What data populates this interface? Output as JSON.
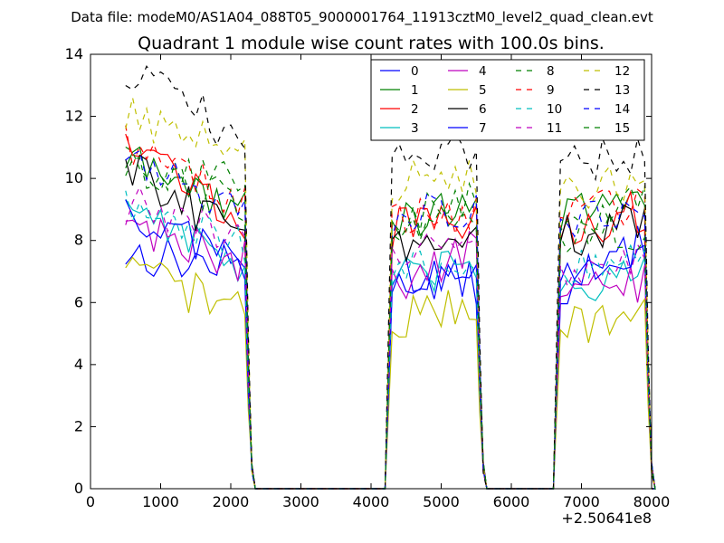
{
  "chart_data": {
    "type": "line",
    "suptitle": "Data file: modeM0/AS1A04_088T05_9000001764_11913cztM0_level2_quad_clean.evt",
    "title": "Quadrant 1 module wise count rates with 100.0s bins.",
    "xlabel": "",
    "ylabel": "",
    "x_offset_label": "+2.50641e8",
    "xlim": [
      0,
      8000
    ],
    "ylim": [
      0,
      14
    ],
    "xticks": [
      0,
      1000,
      2000,
      3000,
      4000,
      5000,
      6000,
      7000,
      8000
    ],
    "yticks": [
      0,
      2,
      4,
      6,
      8,
      10,
      12,
      14
    ],
    "grid": false,
    "legend_position": "top-right",
    "legend_columns": 4,
    "segments": [
      {
        "x_start": 500,
        "x_end": 2200
      },
      {
        "x_start": 4300,
        "x_end": 5500
      },
      {
        "x_start": 6700,
        "x_end": 7900
      }
    ],
    "series": [
      {
        "name": "0",
        "color": "#0000ff",
        "dashed": false,
        "levels": [
          7.6,
          7.1,
          7.0,
          6.6,
          6.3,
          8.0
        ]
      },
      {
        "name": "1",
        "color": "#008000",
        "dashed": false,
        "levels": [
          10.6,
          9.0,
          8.5,
          9.4,
          8.6,
          9.7
        ]
      },
      {
        "name": "2",
        "color": "#ff0000",
        "dashed": false,
        "levels": [
          11.6,
          8.4,
          8.4,
          8.6,
          8.3,
          9.0
        ]
      },
      {
        "name": "3",
        "color": "#00bfbf",
        "dashed": false,
        "levels": [
          9.4,
          7.0,
          6.7,
          7.1,
          6.6,
          6.8
        ]
      },
      {
        "name": "4",
        "color": "#bf00bf",
        "dashed": false,
        "levels": [
          8.6,
          7.3,
          6.6,
          7.8,
          6.4,
          6.6
        ]
      },
      {
        "name": "5",
        "color": "#bfbf00",
        "dashed": false,
        "levels": [
          7.0,
          5.8,
          5.4,
          6.0,
          5.3,
          5.6
        ]
      },
      {
        "name": "6",
        "color": "#000000",
        "dashed": false,
        "levels": [
          10.4,
          8.0,
          7.8,
          8.4,
          8.1,
          8.6
        ]
      },
      {
        "name": "7",
        "color": "#0000ff",
        "dashed": false,
        "levels": [
          9.0,
          7.3,
          6.9,
          6.6,
          6.8,
          7.5
        ]
      },
      {
        "name": "8",
        "color": "#008000",
        "dashed": true,
        "levels": [
          10.6,
          9.8,
          8.6,
          9.4,
          8.4,
          9.5
        ]
      },
      {
        "name": "9",
        "color": "#ff0000",
        "dashed": true,
        "levels": [
          11.2,
          9.2,
          8.5,
          9.0,
          8.8,
          9.3
        ]
      },
      {
        "name": "10",
        "color": "#00bfbf",
        "dashed": true,
        "levels": [
          9.0,
          7.7,
          7.0,
          7.5,
          7.1,
          7.6
        ]
      },
      {
        "name": "11",
        "color": "#bf00bf",
        "dashed": true,
        "levels": [
          9.2,
          8.0,
          7.4,
          7.9,
          7.2,
          7.4
        ]
      },
      {
        "name": "12",
        "color": "#bfbf00",
        "dashed": true,
        "levels": [
          12.2,
          10.6,
          9.8,
          10.2,
          9.6,
          10.0
        ]
      },
      {
        "name": "13",
        "color": "#000000",
        "dashed": true,
        "levels": [
          13.5,
          11.2,
          10.6,
          11.0,
          10.5,
          10.7
        ]
      },
      {
        "name": "14",
        "color": "#0000ff",
        "dashed": true,
        "levels": [
          11.0,
          9.0,
          8.8,
          9.0,
          8.6,
          9.0
        ]
      },
      {
        "name": "15",
        "color": "#008000",
        "dashed": true,
        "levels": [
          10.4,
          9.2,
          8.3,
          8.8,
          8.0,
          8.4
        ]
      }
    ]
  }
}
